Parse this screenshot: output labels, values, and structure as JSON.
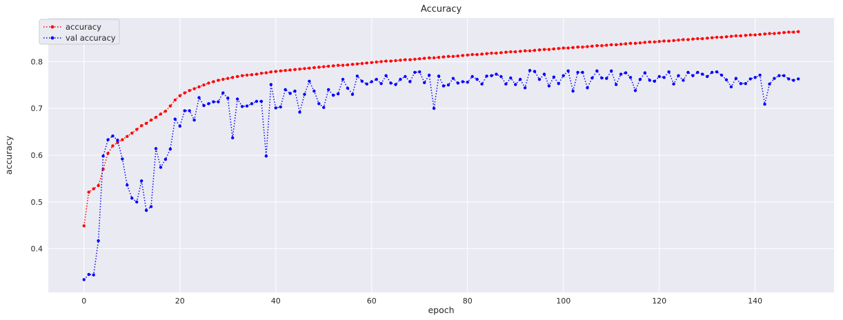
{
  "chart_data": {
    "type": "line",
    "title": "Accuracy",
    "xlabel": "epoch",
    "ylabel": "accuracy",
    "xlim": [
      -7.45,
      156.45
    ],
    "ylim": [
      0.3066,
      0.8933
    ],
    "xticks": [
      0,
      20,
      40,
      60,
      80,
      100,
      120,
      140
    ],
    "yticks": [
      0.4,
      0.5,
      0.6,
      0.7,
      0.8
    ],
    "grid": true,
    "legend_position": "top-left",
    "background_color": "#eaeaf2",
    "series": [
      {
        "name": "accuracy",
        "color": "#ff0000",
        "line_style": "dotted",
        "marker": "circle",
        "start_x": 0,
        "values": [
          0.449,
          0.521,
          0.528,
          0.535,
          0.57,
          0.604,
          0.62,
          0.627,
          0.633,
          0.64,
          0.647,
          0.655,
          0.663,
          0.668,
          0.675,
          0.681,
          0.688,
          0.694,
          0.705,
          0.718,
          0.727,
          0.733,
          0.738,
          0.742,
          0.746,
          0.75,
          0.754,
          0.757,
          0.76,
          0.762,
          0.764,
          0.766,
          0.768,
          0.77,
          0.771,
          0.772,
          0.773,
          0.775,
          0.776,
          0.778,
          0.779,
          0.78,
          0.781,
          0.782,
          0.783,
          0.784,
          0.785,
          0.786,
          0.787,
          0.788,
          0.789,
          0.79,
          0.791,
          0.792,
          0.792,
          0.793,
          0.794,
          0.795,
          0.796,
          0.797,
          0.798,
          0.799,
          0.8,
          0.801,
          0.801,
          0.802,
          0.803,
          0.804,
          0.804,
          0.805,
          0.806,
          0.807,
          0.808,
          0.808,
          0.809,
          0.81,
          0.811,
          0.811,
          0.812,
          0.813,
          0.814,
          0.815,
          0.815,
          0.816,
          0.817,
          0.818,
          0.818,
          0.819,
          0.82,
          0.821,
          0.821,
          0.822,
          0.823,
          0.823,
          0.824,
          0.825,
          0.826,
          0.826,
          0.827,
          0.828,
          0.829,
          0.829,
          0.83,
          0.831,
          0.831,
          0.832,
          0.833,
          0.834,
          0.834,
          0.835,
          0.836,
          0.836,
          0.837,
          0.838,
          0.839,
          0.839,
          0.84,
          0.841,
          0.842,
          0.842,
          0.843,
          0.844,
          0.844,
          0.845,
          0.846,
          0.847,
          0.847,
          0.848,
          0.849,
          0.849,
          0.85,
          0.851,
          0.852,
          0.852,
          0.853,
          0.854,
          0.855,
          0.855,
          0.856,
          0.857,
          0.857,
          0.858,
          0.859,
          0.86,
          0.86,
          0.861,
          0.862,
          0.863,
          0.863,
          0.864
        ]
      },
      {
        "name": "val accuracy",
        "color": "#0000ff",
        "line_style": "dotted",
        "marker": "circle",
        "start_x": 0,
        "values": [
          0.334,
          0.345,
          0.344,
          0.417,
          0.598,
          0.633,
          0.641,
          0.632,
          0.592,
          0.536,
          0.508,
          0.5,
          0.545,
          0.482,
          0.49,
          0.614,
          0.574,
          0.591,
          0.613,
          0.677,
          0.662,
          0.695,
          0.695,
          0.675,
          0.723,
          0.706,
          0.71,
          0.714,
          0.714,
          0.733,
          0.722,
          0.637,
          0.72,
          0.704,
          0.705,
          0.71,
          0.715,
          0.715,
          0.598,
          0.751,
          0.701,
          0.703,
          0.74,
          0.732,
          0.737,
          0.692,
          0.73,
          0.758,
          0.737,
          0.71,
          0.702,
          0.74,
          0.728,
          0.731,
          0.762,
          0.743,
          0.73,
          0.769,
          0.758,
          0.752,
          0.757,
          0.762,
          0.753,
          0.77,
          0.754,
          0.751,
          0.762,
          0.768,
          0.757,
          0.777,
          0.778,
          0.755,
          0.771,
          0.7,
          0.769,
          0.748,
          0.75,
          0.764,
          0.754,
          0.757,
          0.756,
          0.768,
          0.762,
          0.752,
          0.769,
          0.77,
          0.773,
          0.768,
          0.752,
          0.765,
          0.751,
          0.762,
          0.744,
          0.781,
          0.779,
          0.762,
          0.773,
          0.748,
          0.767,
          0.753,
          0.77,
          0.78,
          0.737,
          0.777,
          0.777,
          0.744,
          0.765,
          0.78,
          0.765,
          0.764,
          0.78,
          0.751,
          0.773,
          0.776,
          0.766,
          0.738,
          0.762,
          0.776,
          0.76,
          0.758,
          0.768,
          0.766,
          0.778,
          0.752,
          0.77,
          0.76,
          0.777,
          0.77,
          0.777,
          0.773,
          0.768,
          0.777,
          0.778,
          0.771,
          0.761,
          0.746,
          0.764,
          0.753,
          0.753,
          0.763,
          0.766,
          0.771,
          0.709,
          0.752,
          0.764,
          0.77,
          0.77,
          0.763,
          0.76,
          0.763
        ]
      }
    ]
  }
}
